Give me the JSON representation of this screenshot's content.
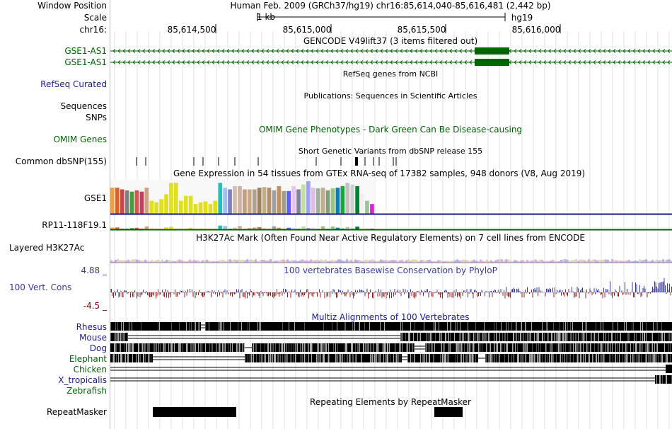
{
  "header": {
    "window_position_label": "Window Position",
    "scale_label": "Scale",
    "chrom_label": "chr16:",
    "assembly_text": "Human Feb. 2009 (GRCh37/hg19)   chr16:85,614,040-85,616,481 (2,442 bp)",
    "scale_bar_text": "1 kb",
    "scale_db": "hg19",
    "ruler_ticks": [
      "85,614,500",
      "85,615,000",
      "85,615,500",
      "85,616,000"
    ]
  },
  "tracks": {
    "gencode": {
      "title": "GENCODE V49lift37 (3 items filtered out)",
      "items": [
        "GSE1-AS1",
        "GSE1-AS1"
      ]
    },
    "refseq": {
      "title": "RefSeq genes from NCBI",
      "label": "RefSeq Curated"
    },
    "publications": {
      "title": "Publications: Sequences in Scientific Articles",
      "label": "Sequences"
    },
    "snps_label": "SNPs",
    "omim": {
      "title": "OMIM Gene Phenotypes - Dark Green Can Be Disease-causing",
      "label": "OMIM Genes"
    },
    "dbsnp": {
      "title": "Short Genetic Variants from dbSNP release 155",
      "label": "Common dbSNP(155)"
    },
    "gtex": {
      "title": "Gene Expression in 54 tissues from GTEx RNA-seq of 17382 samples, 948 donors (V8, Aug 2019)",
      "gene1": "GSE1",
      "gene2": "RP11-118F19.1"
    },
    "h3k27ac": {
      "title": "H3K27Ac Mark (Often Found Near Active Regulatory Elements) on 7 cell lines from ENCODE",
      "label": "Layered H3K27Ac"
    },
    "phylop": {
      "title": "100 vertebrates Basewise Conservation by PhyloP",
      "label": "100 Vert. Cons",
      "max": "4.88 _",
      "min": "-4.5 _"
    },
    "multiz": {
      "title": "Multiz Alignments of 100 Vertebrates",
      "species": [
        "Rhesus",
        "Mouse",
        "Dog",
        "Elephant",
        "Chicken",
        "X_tropicalis",
        "Zebrafish"
      ]
    },
    "repeatmasker": {
      "title": "Repeating Elements by RepeatMasker",
      "label": "RepeatMasker"
    }
  },
  "colors": {
    "gencode_green": "#006400",
    "refseq_navy": "#1c1c8c",
    "phylop_blue": "#3a3a9a",
    "phylop_red": "#8b2323",
    "guide_line": "#dde3f0",
    "separator": "#f0a0a0"
  }
}
